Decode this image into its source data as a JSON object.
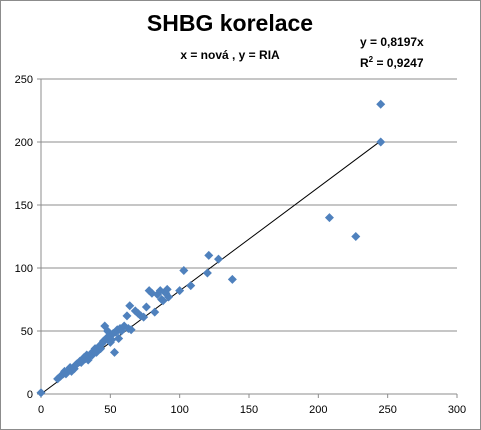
{
  "chart_data": {
    "type": "scatter",
    "title": "SHBG korelace",
    "subtitle": "x = nová , y = RIA",
    "trendline": {
      "equation": "y = 0,8197x",
      "r2_prefix": "R",
      "r2_sup": "2",
      "r2_rest": " = 0,9247",
      "slope": 0.8197
    },
    "xlim": [
      0,
      300
    ],
    "ylim": [
      0,
      250
    ],
    "x_ticks": [
      0,
      50,
      100,
      150,
      200,
      250,
      300
    ],
    "y_ticks": [
      0,
      50,
      100,
      150,
      200,
      250
    ],
    "x_tick_labels": [
      "0",
      "50",
      "100",
      "150",
      "200",
      "250",
      "300"
    ],
    "y_tick_labels": [
      "0",
      "50",
      "100",
      "150",
      "200",
      "250"
    ],
    "grid": "horizontal",
    "marker_color": "#4f81bd",
    "line_color": "#000000",
    "points": [
      [
        0,
        1
      ],
      [
        12,
        12
      ],
      [
        14,
        14
      ],
      [
        16,
        16
      ],
      [
        17,
        18
      ],
      [
        18,
        16
      ],
      [
        20,
        19
      ],
      [
        21,
        21
      ],
      [
        22,
        18
      ],
      [
        24,
        20
      ],
      [
        25,
        23
      ],
      [
        26,
        24
      ],
      [
        28,
        26
      ],
      [
        29,
        25
      ],
      [
        30,
        27
      ],
      [
        31,
        29
      ],
      [
        32,
        28
      ],
      [
        33,
        31
      ],
      [
        34,
        27
      ],
      [
        35,
        30
      ],
      [
        36,
        32
      ],
      [
        37,
        31
      ],
      [
        38,
        34
      ],
      [
        39,
        36
      ],
      [
        40,
        33
      ],
      [
        41,
        35
      ],
      [
        42,
        38
      ],
      [
        43,
        36
      ],
      [
        44,
        40
      ],
      [
        45,
        42
      ],
      [
        46,
        54
      ],
      [
        47,
        44
      ],
      [
        48,
        50
      ],
      [
        49,
        46
      ],
      [
        50,
        41
      ],
      [
        51,
        43
      ],
      [
        52,
        48
      ],
      [
        53,
        33
      ],
      [
        54,
        49
      ],
      [
        55,
        51
      ],
      [
        56,
        44
      ],
      [
        57,
        52
      ],
      [
        58,
        50
      ],
      [
        60,
        54
      ],
      [
        62,
        62
      ],
      [
        63,
        52
      ],
      [
        64,
        70
      ],
      [
        65,
        51
      ],
      [
        68,
        66
      ],
      [
        70,
        64
      ],
      [
        72,
        62
      ],
      [
        74,
        61
      ],
      [
        76,
        69
      ],
      [
        78,
        82
      ],
      [
        80,
        80
      ],
      [
        82,
        65
      ],
      [
        84,
        79
      ],
      [
        86,
        82
      ],
      [
        87,
        75
      ],
      [
        88,
        74
      ],
      [
        90,
        80
      ],
      [
        91,
        83
      ],
      [
        92,
        77
      ],
      [
        100,
        82
      ],
      [
        103,
        98
      ],
      [
        108,
        86
      ],
      [
        120,
        96
      ],
      [
        121,
        110
      ],
      [
        128,
        107
      ],
      [
        138,
        91
      ],
      [
        208,
        140
      ],
      [
        227,
        125
      ],
      [
        245,
        230
      ],
      [
        245,
        200
      ]
    ]
  }
}
